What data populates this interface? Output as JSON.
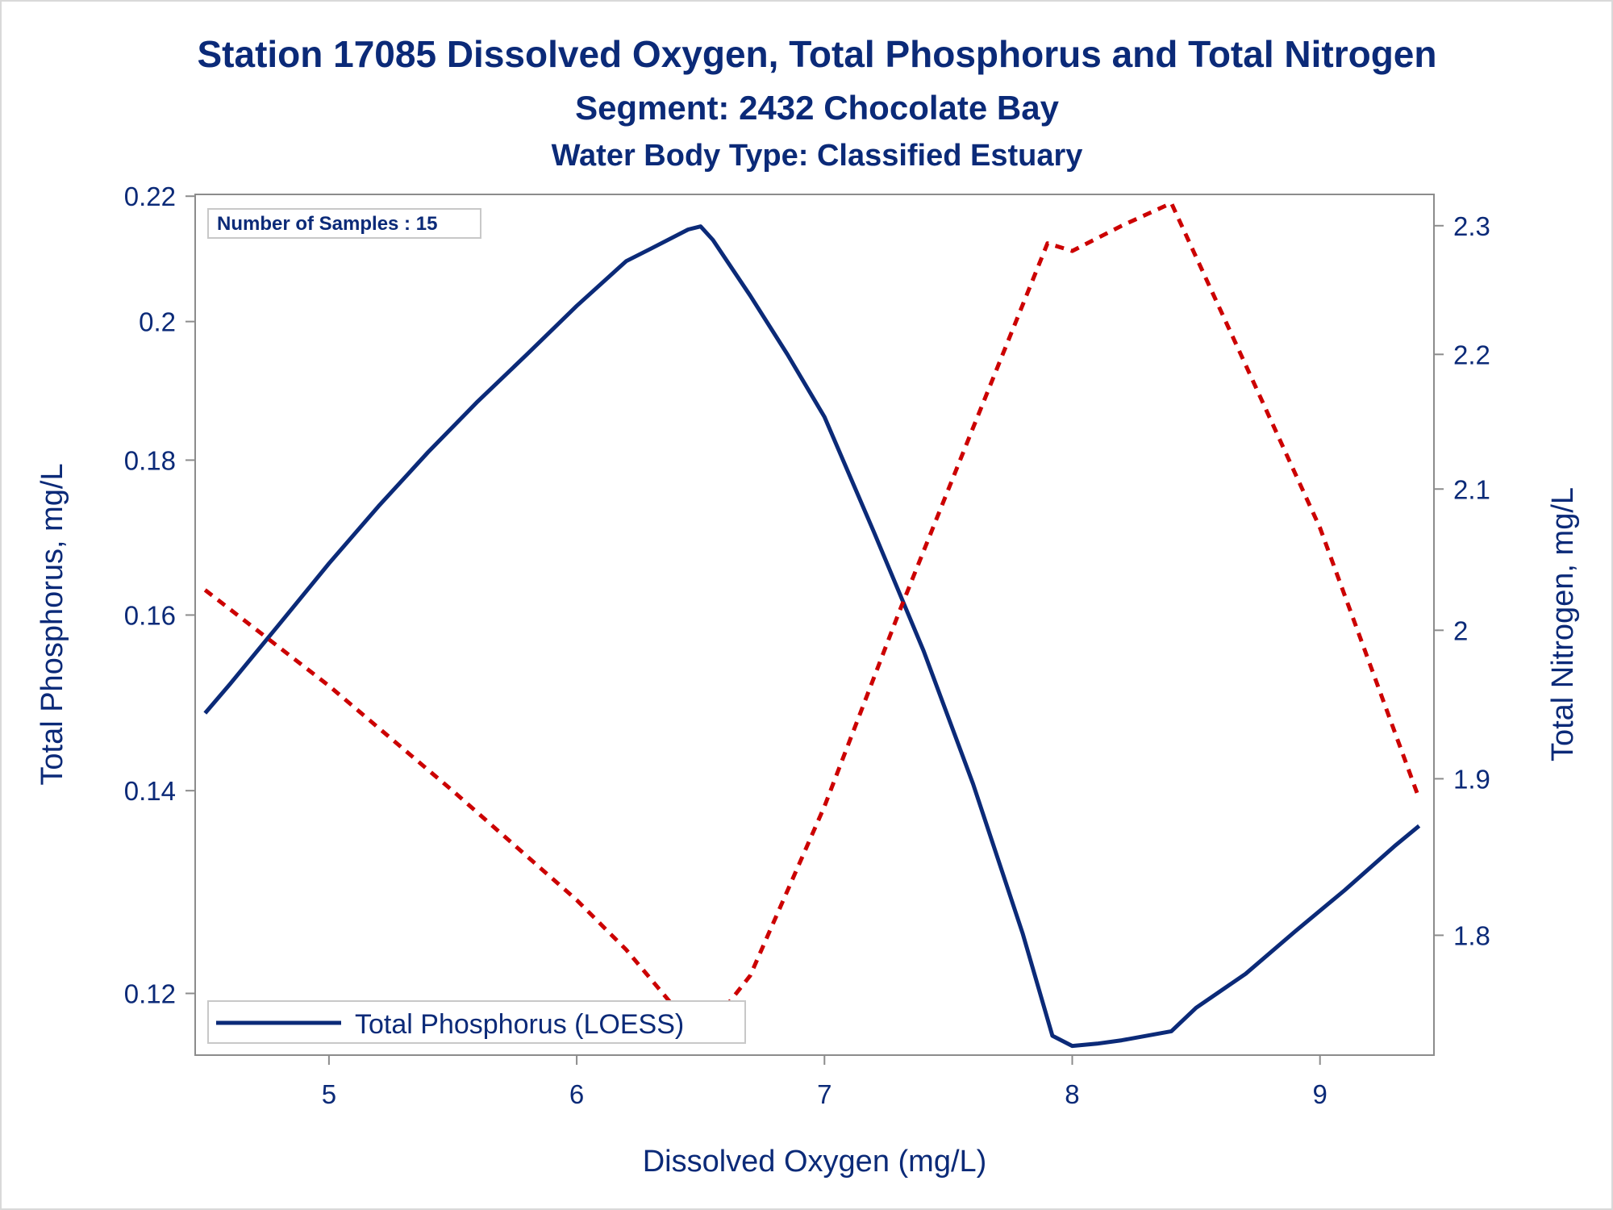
{
  "titles": {
    "line1": "Station 17085  Dissolved Oxygen, Total Phosphorus and Total Nitrogen",
    "line2": "Segment: 2432  Chocolate Bay",
    "line3": "Water Body Type: Classified Estuary"
  },
  "inset_label": "Number of Samples : 15",
  "legend": {
    "label": "Total Phosphorus (LOESS)",
    "position": "bottom-left"
  },
  "colors": {
    "phosphorus": "#0b2a78",
    "nitrogen": "#cc0000",
    "text": "#0b2a78",
    "axis": "#8c8c8c"
  },
  "chart_data": {
    "type": "line",
    "xlabel": "Dissolved Oxygen (mg/L)",
    "ylabel": "Total Phosphorus, mg/L",
    "y2label": "Total Nitrogen, mg/L",
    "xlim": [
      4.46,
      9.46
    ],
    "ylim": [
      0.1145,
      0.2203
    ],
    "y2lim": [
      1.727,
      2.325
    ],
    "log_y": true,
    "log_y2": true,
    "xticks": [
      "5",
      "6",
      "7",
      "8",
      "9"
    ],
    "yticks": [
      "0.12",
      "0.14",
      "0.16",
      "0.18",
      "0.2",
      "0.22"
    ],
    "y2ticks": [
      "1.8",
      "1.9",
      "2",
      "2.1",
      "2.2",
      "2.3"
    ],
    "grid": false,
    "series": [
      {
        "name": "Total Phosphorus (LOESS)",
        "axis": "left",
        "style": "solid",
        "x": [
          4.5,
          4.6,
          4.8,
          5.0,
          5.2,
          5.4,
          5.6,
          5.8,
          6.0,
          6.2,
          6.3,
          6.45,
          6.5,
          6.55,
          6.7,
          6.85,
          7.0,
          7.2,
          7.4,
          7.6,
          7.8,
          7.92,
          8.0,
          8.1,
          8.2,
          8.4,
          8.5,
          8.7,
          8.9,
          9.1,
          9.3,
          9.4
        ],
        "y": [
          0.1485,
          0.1518,
          0.1589,
          0.1664,
          0.1738,
          0.1811,
          0.1882,
          0.1951,
          0.2024,
          0.2094,
          0.2114,
          0.2145,
          0.215,
          0.2128,
          0.204,
          0.1951,
          0.186,
          0.1704,
          0.1557,
          0.1407,
          0.1256,
          0.1162,
          0.1153,
          0.1155,
          0.1158,
          0.1166,
          0.1187,
          0.1218,
          0.1258,
          0.1298,
          0.1342,
          0.1363
        ]
      },
      {
        "name": "",
        "axis": "right",
        "style": "dashed",
        "x": [
          4.5,
          5.0,
          5.5,
          6.0,
          6.2,
          6.5,
          6.7,
          7.0,
          7.3,
          7.6,
          7.9,
          8.0,
          8.2,
          8.4,
          8.7,
          9.0,
          9.4
        ],
        "y": [
          2.028,
          1.962,
          1.892,
          1.822,
          1.791,
          1.737,
          1.775,
          1.882,
          2.012,
          2.145,
          2.286,
          2.28,
          2.3,
          2.318,
          2.192,
          2.072,
          1.887
        ]
      }
    ]
  }
}
